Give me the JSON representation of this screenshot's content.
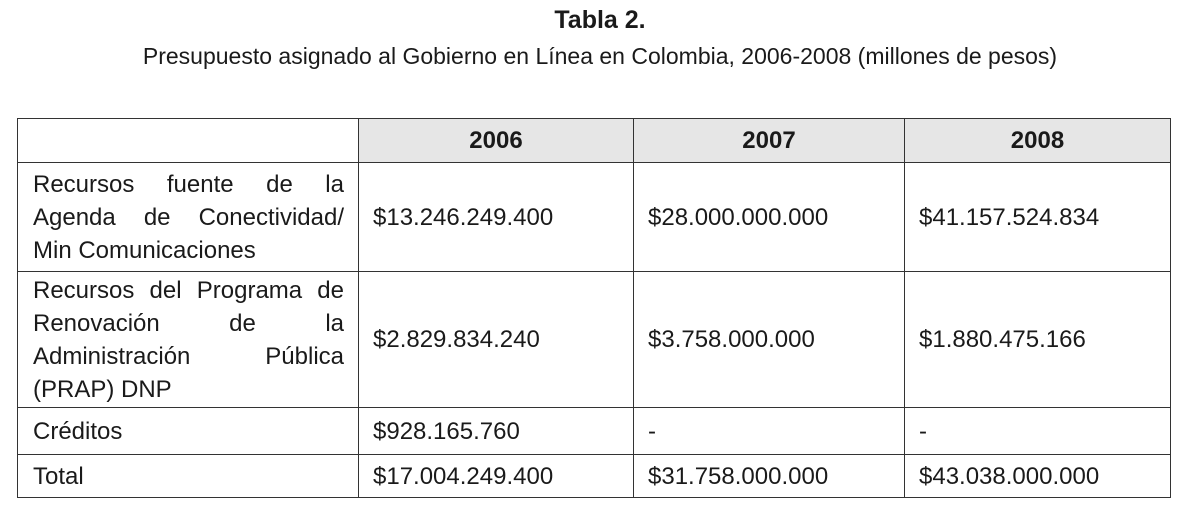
{
  "title": "Tabla 2.",
  "subtitle": "Presupuesto asignado al Gobierno en Línea en Colombia, 2006-2008 (millones de pesos)",
  "table": {
    "header": [
      "2006",
      "2007",
      "2008"
    ],
    "rows": [
      [
        "Recursos fuente de la Agenda de Conectividad/ Min Comunicaciones",
        "$13.246.249.400",
        "$28.000.000.000",
        "$41.157.524.834"
      ],
      [
        "Recursos del Programa de Renovación de la Administración Pública (PRAP) DNP",
        "$2.829.834.240",
        "$3.758.000.000",
        "$1.880.475.166"
      ],
      [
        "Créditos",
        "$928.165.760",
        "-",
        "-"
      ],
      [
        "Total",
        "$17.004.249.400",
        "$31.758.000.000",
        "$43.038.000.000"
      ]
    ]
  }
}
